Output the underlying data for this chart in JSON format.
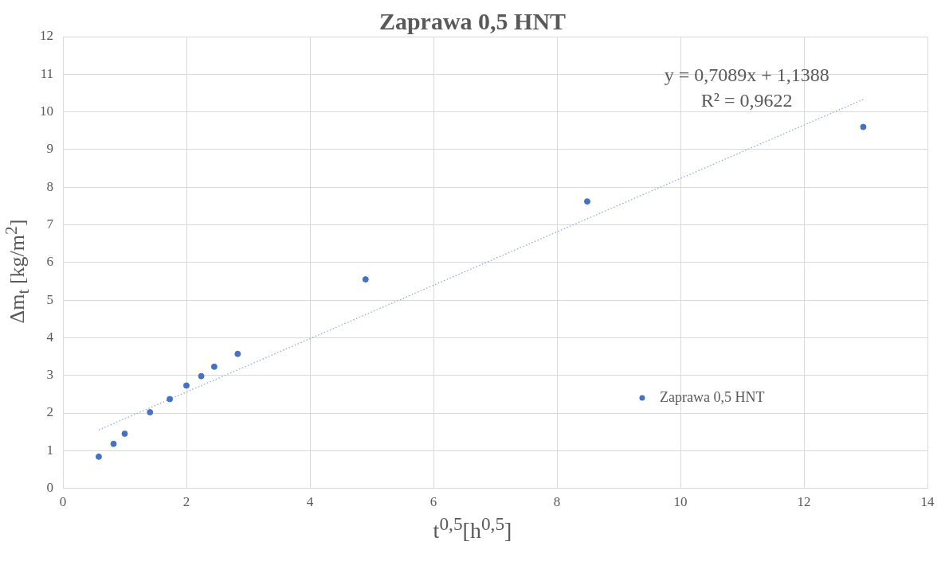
{
  "chart_data": {
    "type": "scatter",
    "title": "Zaprawa 0,5 HNT",
    "xlabel": "t$^{0,5}$[h$^{0,5}$]",
    "ylabel": "Δm$_{t}$ [kg/m$^{2}$]",
    "x": [
      0.58,
      0.82,
      1.0,
      1.41,
      1.73,
      2.0,
      2.24,
      2.45,
      2.83,
      4.9,
      8.49,
      12.96
    ],
    "series": [
      {
        "name": "Zaprawa 0,5 HNT",
        "color": "#4472c4",
        "marker": "circle",
        "values": [
          0.84,
          1.18,
          1.45,
          2.02,
          2.37,
          2.73,
          2.98,
          3.23,
          3.57,
          5.55,
          7.62,
          9.6
        ]
      },
      {
        "type": "line",
        "color": "#8faadc",
        "line_style": "dotted",
        "marker": "none",
        "x": [
          0.58,
          12.96
        ],
        "values": [
          1.55,
          10.33
        ]
      }
    ],
    "annotations": [
      "y = 0,7089x + 1,1388",
      "R² = 0,9622"
    ],
    "xlim": [
      0,
      14
    ],
    "xticks": [
      0,
      2,
      4,
      6,
      8,
      10,
      12,
      14
    ],
    "ylim": [
      0,
      12
    ],
    "yticks": [
      0,
      1,
      2,
      3,
      4,
      5,
      6,
      7,
      8,
      9,
      10,
      11,
      12
    ],
    "grid": true,
    "legend": "right"
  }
}
